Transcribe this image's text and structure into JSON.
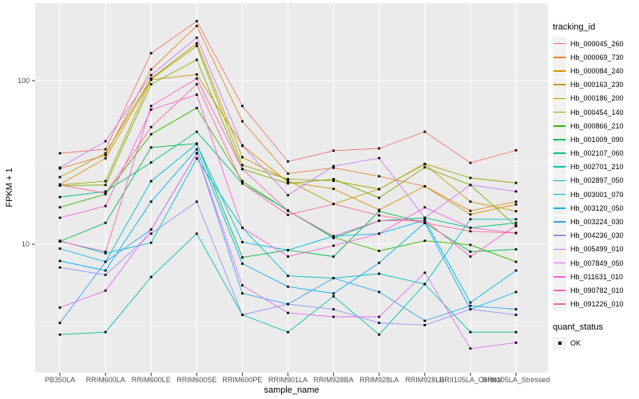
{
  "chart_data": {
    "type": "line",
    "title": "",
    "xlabel": "sample_name",
    "ylabel": "FPKM + 1",
    "y_scale": "log10",
    "y_tick_labels": [
      "100",
      "10"
    ],
    "y_tick_values": [
      100,
      10
    ],
    "y_minor_values": [
      31.623,
      3.162
    ],
    "ylim": [
      1.64,
      295
    ],
    "grid": true,
    "legend_position": "right",
    "legend_title": "tracking_id",
    "quant_legend": {
      "title": "quant_status",
      "items": [
        {
          "label": "OK",
          "marker": "square",
          "color": "#000000"
        }
      ]
    },
    "panel_bg": "#EBEBEB",
    "grid_color": "#FFFFFF",
    "tick_label_color": "#4D4D4D",
    "point_marker": {
      "shape": "square",
      "color": "#000000"
    },
    "categories": [
      "PB350LA",
      "RRIM600LA",
      "RRIM600LE",
      "RRIM600SE",
      "RRIM600PE",
      "RRIM901LA",
      "RRIM928BA",
      "RRIM928LA",
      "RRIM928LB",
      "RRII105LA_Control",
      "RRII105LA_Stressed"
    ],
    "series": [
      {
        "name": "Hb_000045_260",
        "color": "#F8766D",
        "values": [
          36,
          38,
          147,
          231,
          70,
          32,
          37.3,
          38.5,
          48.7,
          31.4,
          37.5
        ]
      },
      {
        "name": "Hb_000069_730",
        "color": "#EA8331",
        "values": [
          29,
          35,
          117,
          216,
          56.4,
          27,
          29.3,
          26,
          22.6,
          16,
          18.2
        ]
      },
      {
        "name": "Hb_000084_240",
        "color": "#D89000",
        "values": [
          23.2,
          33.5,
          101,
          109,
          40.2,
          24,
          21.8,
          16.2,
          22.6,
          15.2,
          17.5
        ]
      },
      {
        "name": "Hb_000163_230",
        "color": "#C09B00",
        "values": [
          25.7,
          36,
          103,
          169,
          34,
          24.5,
          17.6,
          21.7,
          30.8,
          18.2,
          15.9
        ]
      },
      {
        "name": "Hb_000186_200",
        "color": "#A3A500",
        "values": [
          23,
          24.3,
          102,
          163,
          30.4,
          25,
          24.4,
          21.7,
          31,
          25.4,
          23.7
        ]
      },
      {
        "name": "Hb_000454_140",
        "color": "#7CAE00",
        "values": [
          22.8,
          23,
          95,
          134,
          28.8,
          23.5,
          25,
          19.2,
          29.5,
          23,
          12.9
        ]
      },
      {
        "name": "Hb_000866_210",
        "color": "#39B600",
        "values": [
          16.8,
          20.2,
          47,
          68,
          24.3,
          16,
          11,
          9.1,
          10.5,
          9.9,
          7.8
        ]
      },
      {
        "name": "Hb_001009_090",
        "color": "#00BB4E",
        "values": [
          10.4,
          13.5,
          39,
          41.2,
          8.3,
          9.2,
          8.4,
          15.9,
          13.5,
          9,
          9.3
        ]
      },
      {
        "name": "Hb_002107_060",
        "color": "#00BF7D",
        "values": [
          19.4,
          21,
          31.6,
          48.7,
          23.5,
          16.1,
          10.9,
          13.9,
          14.5,
          12.6,
          13.5
        ]
      },
      {
        "name": "Hb_002701_210",
        "color": "#00C1A3",
        "values": [
          2.8,
          2.9,
          6.3,
          11.6,
          3.7,
          2.9,
          4.8,
          2.8,
          5.7,
          2.9,
          2.9
        ]
      },
      {
        "name": "Hb_002897_050",
        "color": "#00BFC4",
        "values": [
          10.5,
          8.8,
          10.2,
          33.4,
          12.6,
          6.4,
          6.2,
          6.6,
          5.7,
          14.2,
          14.2
        ]
      },
      {
        "name": "Hb_003001_070",
        "color": "#00BAE0",
        "values": [
          9.4,
          7.8,
          24.3,
          41,
          10.3,
          9.2,
          11.2,
          11.6,
          14,
          4.4,
          6.9
        ]
      },
      {
        "name": "Hb_003120_050",
        "color": "#00B0F6",
        "values": [
          7.9,
          6.9,
          18.2,
          38,
          7.6,
          5.5,
          5,
          7.7,
          13.5,
          4,
          5.1
        ]
      },
      {
        "name": "Hb_003224_030",
        "color": "#35A2FF",
        "values": [
          3.3,
          7.8,
          12.3,
          36,
          5,
          4.3,
          6.2,
          5.1,
          3.4,
          4.2,
          4
        ]
      },
      {
        "name": "Hb_004236_030",
        "color": "#9590FF",
        "values": [
          7.2,
          6.5,
          11.6,
          18.2,
          3.7,
          4.3,
          4,
          3.3,
          3.2,
          4,
          3.7
        ]
      },
      {
        "name": "Hb_005499_010",
        "color": "#C77CFF",
        "values": [
          29.4,
          42.6,
          108,
          183,
          40,
          19.9,
          30,
          33.6,
          14.5,
          23,
          21
        ]
      },
      {
        "name": "Hb_007849_050",
        "color": "#E76BF3",
        "values": [
          4.1,
          5.2,
          12.3,
          36,
          5.6,
          3.8,
          3.6,
          3.6,
          6.7,
          2.3,
          2.5
        ]
      },
      {
        "name": "Hb_011631_010",
        "color": "#FA62DB",
        "values": [
          14.5,
          17.1,
          66.5,
          82,
          12.6,
          8.4,
          9.8,
          11.6,
          16.8,
          12.6,
          11.7
        ]
      },
      {
        "name": "Hb_090782_010",
        "color": "#FF62BC",
        "values": [
          10.4,
          9,
          70,
          103,
          28.8,
          16,
          11.2,
          13.9,
          14,
          8.4,
          13
        ]
      },
      {
        "name": "Hb_091226_010",
        "color": "#FF6A98",
        "values": [
          23,
          20.5,
          52,
          95,
          23.5,
          15.1,
          17.6,
          15,
          13.5,
          12,
          11.7
        ]
      }
    ]
  }
}
